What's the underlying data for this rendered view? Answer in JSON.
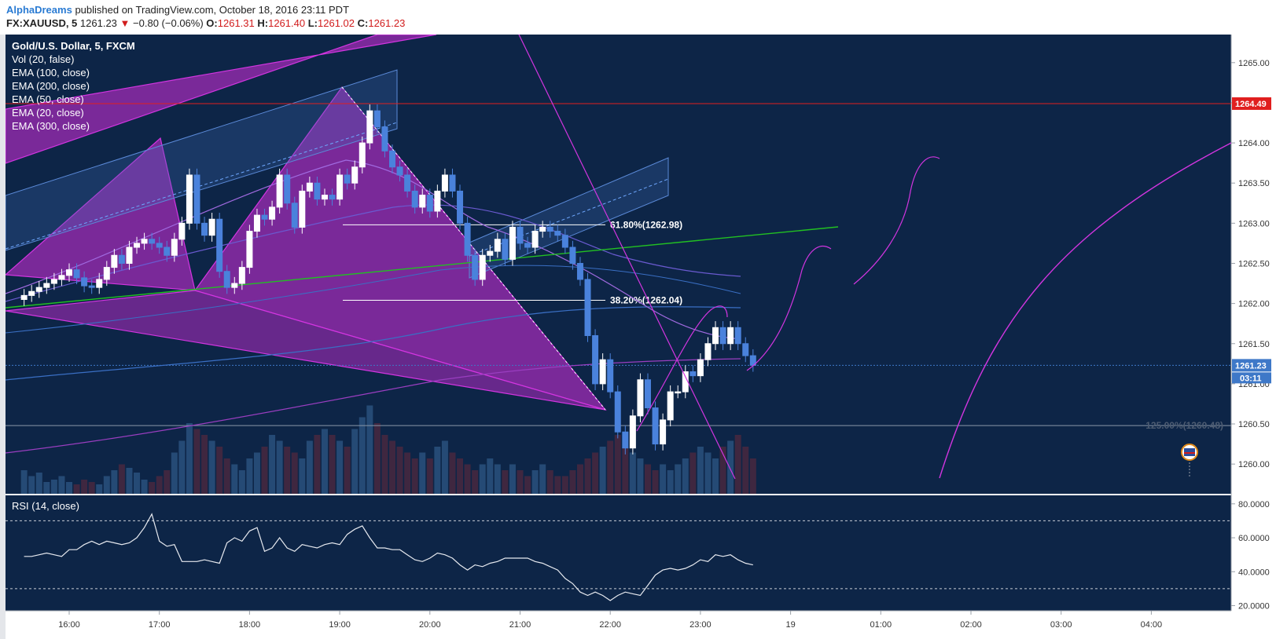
{
  "header": {
    "author": "AlphaDreams",
    "published": "published on TradingView.com, October 18, 2016 23:11 PDT",
    "symbol": "FX:XAUUSD, 5",
    "last": "1261.23",
    "change": "−0.80 (−0.06%)",
    "open_label": "O:",
    "open": "1261.31",
    "high_label": "H:",
    "high": "1261.40",
    "low_label": "L:",
    "low": "1261.02",
    "close_label": "C:",
    "close": "1261.23"
  },
  "legend": {
    "title": "Gold/U.S. Dollar, 5, FXCM",
    "indicators": [
      "Vol (20, false)",
      "EMA (100, close)",
      "EMA (200, close)",
      "EMA (50, close)",
      "EMA (20, close)",
      "EMA (300, close)"
    ]
  },
  "rsi_label": "RSI (14, close)",
  "colors": {
    "background": "#0d2547",
    "up": "#ffffff",
    "down": "#4a82dc",
    "pattern": "#8e2aa8",
    "pattern_line": "#d235e0",
    "green_line": "#22c022",
    "resistance": "#e01f1f",
    "last_price_badge": "#3e78c8"
  },
  "chart_data": [
    {
      "type": "candlestick",
      "title": "Gold/U.S. Dollar, 5, FXCM",
      "x_ticks": [
        "16:00",
        "17:00",
        "18:00",
        "19:00",
        "20:00",
        "21:00",
        "22:00",
        "23:00",
        "19",
        "01:00",
        "02:00",
        "03:00",
        "04:00"
      ],
      "y_ticks": [
        "1265.00",
        "1264.50",
        "1264.00",
        "1263.50",
        "1263.00",
        "1262.50",
        "1262.00",
        "1261.50",
        "1261.00",
        "1260.50",
        "1260.00"
      ],
      "ylim": [
        1259.63,
        1265.35
      ],
      "candle_start": "15:30",
      "candle_interval_min": 5,
      "closes": [
        1262.1,
        1262.15,
        1262.2,
        1262.25,
        1262.3,
        1262.35,
        1262.42,
        1262.32,
        1262.22,
        1262.2,
        1262.3,
        1262.45,
        1262.6,
        1262.5,
        1262.7,
        1262.75,
        1262.8,
        1262.75,
        1262.7,
        1262.6,
        1262.8,
        1263.0,
        1263.6,
        1263.0,
        1262.85,
        1263.05,
        1262.4,
        1262.2,
        1262.25,
        1262.45,
        1262.9,
        1263.1,
        1263.05,
        1263.2,
        1263.6,
        1263.25,
        1262.95,
        1263.4,
        1263.5,
        1263.3,
        1263.35,
        1263.3,
        1263.6,
        1263.5,
        1263.7,
        1264.0,
        1264.4,
        1264.2,
        1263.9,
        1263.7,
        1263.6,
        1263.4,
        1263.2,
        1263.35,
        1263.15,
        1263.4,
        1263.6,
        1263.4,
        1263.0,
        1262.6,
        1262.3,
        1262.6,
        1262.65,
        1262.8,
        1262.55,
        1262.95,
        1262.75,
        1262.7,
        1262.9,
        1262.95,
        1262.9,
        1262.85,
        1262.7,
        1262.5,
        1262.3,
        1261.6,
        1261.0,
        1261.3,
        1260.9,
        1260.4,
        1260.2,
        1260.6,
        1261.05,
        1260.7,
        1260.25,
        1260.55,
        1260.9,
        1260.9,
        1261.15,
        1261.1,
        1261.3,
        1261.5,
        1261.7,
        1261.5,
        1261.7,
        1261.5,
        1261.35,
        1261.23
      ],
      "volume_scale_max": 1.0,
      "volumes": [
        0.2,
        0.15,
        0.18,
        0.1,
        0.12,
        0.15,
        0.1,
        0.08,
        0.12,
        0.1,
        0.08,
        0.15,
        0.2,
        0.25,
        0.22,
        0.18,
        0.12,
        0.1,
        0.15,
        0.2,
        0.35,
        0.45,
        0.6,
        0.55,
        0.5,
        0.45,
        0.4,
        0.3,
        0.25,
        0.2,
        0.3,
        0.35,
        0.4,
        0.5,
        0.45,
        0.4,
        0.35,
        0.3,
        0.45,
        0.5,
        0.55,
        0.5,
        0.45,
        0.4,
        0.55,
        0.65,
        0.75,
        0.6,
        0.5,
        0.45,
        0.4,
        0.35,
        0.3,
        0.35,
        0.3,
        0.4,
        0.45,
        0.35,
        0.3,
        0.25,
        0.2,
        0.25,
        0.3,
        0.25,
        0.2,
        0.25,
        0.2,
        0.15,
        0.2,
        0.25,
        0.2,
        0.15,
        0.15,
        0.2,
        0.25,
        0.3,
        0.35,
        0.4,
        0.45,
        0.5,
        0.4,
        0.35,
        0.3,
        0.25,
        0.2,
        0.25,
        0.2,
        0.25,
        0.3,
        0.35,
        0.4,
        0.35,
        0.3,
        0.4,
        0.45,
        0.5,
        0.4,
        0.3
      ],
      "reference_lines": [
        {
          "label": "1264.49",
          "value": 1264.49,
          "color": "#e01f1f"
        },
        {
          "label": "1261.23",
          "value": 1261.23,
          "color": "#3e78c8"
        }
      ],
      "countdown": "03:11",
      "fibonacci": [
        {
          "label": "61.80%(1262.98)",
          "value": 1262.98
        },
        {
          "label": "38.20%(1262.04)",
          "value": 1262.04
        },
        {
          "label": "125.00%(1260.48)",
          "value": 1260.48
        }
      ]
    },
    {
      "type": "line",
      "title": "RSI (14, close)",
      "y_ticks": [
        "80.0000",
        "60.0000",
        "40.0000",
        "20.0000"
      ],
      "ylim": [
        17,
        85
      ],
      "bands": [
        70,
        30
      ],
      "values": [
        49,
        49,
        50,
        51,
        50,
        49,
        53,
        53,
        56,
        58,
        56,
        58,
        57,
        56,
        57,
        60,
        66,
        74,
        58,
        55,
        56,
        46,
        46,
        46,
        47,
        46,
        45,
        57,
        60,
        58,
        64,
        66,
        52,
        54,
        60,
        54,
        52,
        56,
        55,
        54,
        56,
        57,
        56,
        62,
        65,
        67,
        60,
        54,
        54,
        53,
        53,
        50,
        47,
        46,
        48,
        51,
        50,
        48,
        44,
        41,
        44,
        43,
        45,
        46,
        48,
        48,
        48,
        48,
        46,
        45,
        43,
        41,
        36,
        33,
        28,
        26,
        28,
        26,
        23,
        26,
        28,
        27,
        26,
        32,
        38,
        41,
        42,
        41,
        42,
        44,
        47,
        46,
        50,
        49,
        50,
        47,
        45,
        44
      ]
    }
  ]
}
